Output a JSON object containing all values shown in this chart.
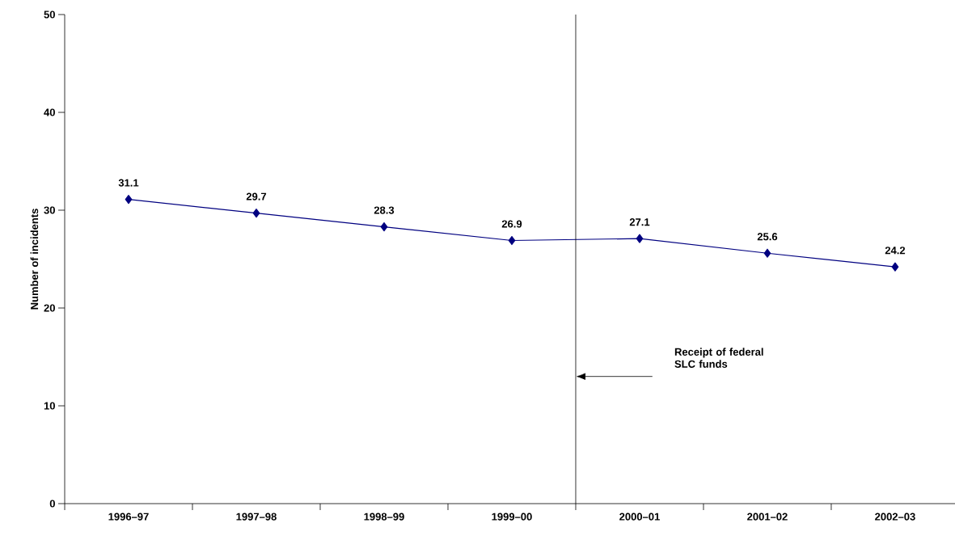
{
  "chart_data": {
    "type": "line",
    "ylabel": "Number of incidents",
    "categories": [
      "1996–97",
      "1997–98",
      "1998–99",
      "1999–00",
      "2000–01",
      "2001–02",
      "2002–03"
    ],
    "values": [
      31.1,
      29.7,
      28.3,
      26.9,
      27.1,
      25.6,
      24.2
    ],
    "color": "#000080",
    "marker": "diamond",
    "line_style": "solid",
    "data_labels": true,
    "grid": false,
    "ylim": [
      0,
      50
    ],
    "yticks": [
      0,
      10,
      20,
      30,
      40,
      50
    ],
    "annotations": [
      "Receipt of federal SLC funds"
    ]
  }
}
